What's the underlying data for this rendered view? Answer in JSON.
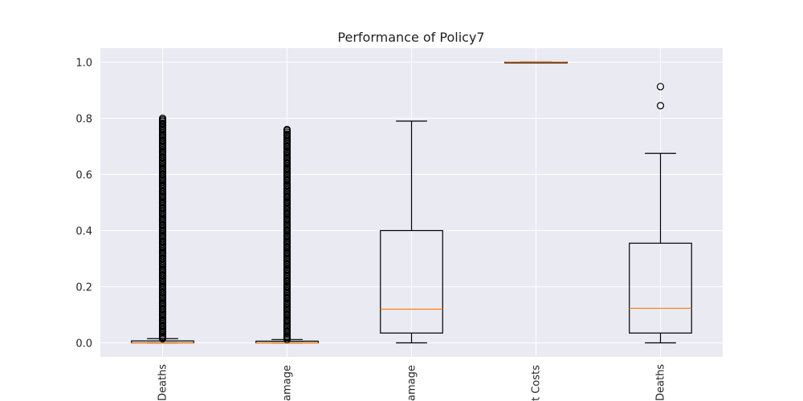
{
  "chart_data": {
    "type": "box",
    "title": "Performance of Policy7",
    "xlabel": "",
    "ylabel": "",
    "ylim": [
      -0.05,
      1.05
    ],
    "yticks": [
      0.0,
      0.2,
      0.4,
      0.6,
      0.8,
      1.0
    ],
    "ytick_labels": [
      "0.0",
      "0.2",
      "0.4",
      "0.6",
      "0.8",
      "1.0"
    ],
    "grid": true,
    "categories": [
      "Deaths",
      "amage",
      "amage",
      "t Costs",
      "Deaths"
    ],
    "boxes": [
      {
        "category": "Deaths",
        "whisker_low": 0.0,
        "q1": 0.0,
        "median": 0.0,
        "q3": 0.007,
        "whisker_high": 0.015,
        "outliers_range": [
          0.015,
          0.8
        ],
        "outliers_sample": [
          0.02,
          0.04,
          0.06,
          0.08,
          0.1,
          0.12,
          0.14,
          0.16,
          0.18,
          0.2,
          0.22,
          0.24,
          0.26,
          0.28,
          0.3,
          0.32,
          0.34,
          0.36,
          0.38,
          0.4,
          0.42,
          0.44,
          0.46,
          0.48,
          0.5,
          0.52,
          0.54,
          0.56,
          0.58,
          0.6,
          0.62,
          0.64,
          0.66,
          0.68,
          0.7,
          0.72,
          0.74,
          0.76,
          0.78,
          0.79,
          0.8
        ]
      },
      {
        "category": "amage",
        "whisker_low": 0.0,
        "q1": 0.0,
        "median": 0.0,
        "q3": 0.006,
        "whisker_high": 0.012,
        "outliers_range": [
          0.012,
          0.76
        ],
        "outliers_sample": [
          0.02,
          0.04,
          0.06,
          0.08,
          0.1,
          0.12,
          0.14,
          0.16,
          0.18,
          0.2,
          0.22,
          0.24,
          0.26,
          0.28,
          0.3,
          0.32,
          0.34,
          0.36,
          0.38,
          0.4,
          0.42,
          0.44,
          0.46,
          0.48,
          0.5,
          0.52,
          0.54,
          0.56,
          0.58,
          0.6,
          0.62,
          0.64,
          0.66,
          0.68,
          0.7,
          0.72,
          0.74,
          0.76
        ]
      },
      {
        "category": "amage",
        "whisker_low": 0.0,
        "q1": 0.035,
        "median": 0.12,
        "q3": 0.4,
        "whisker_high": 0.79,
        "outliers_sample": []
      },
      {
        "category": "t Costs",
        "whisker_low": 1.0,
        "q1": 1.0,
        "median": 1.0,
        "q3": 1.0,
        "whisker_high": 1.0,
        "outliers_sample": []
      },
      {
        "category": "Deaths",
        "whisker_low": 0.0,
        "q1": 0.035,
        "median": 0.123,
        "q3": 0.355,
        "whisker_high": 0.675,
        "outliers_sample": [
          0.845,
          0.913
        ]
      }
    ],
    "colors": {
      "plot_background": "#eaeaf2",
      "grid": "#ffffff",
      "box": "#000000",
      "median": "#ff7f0e"
    }
  }
}
